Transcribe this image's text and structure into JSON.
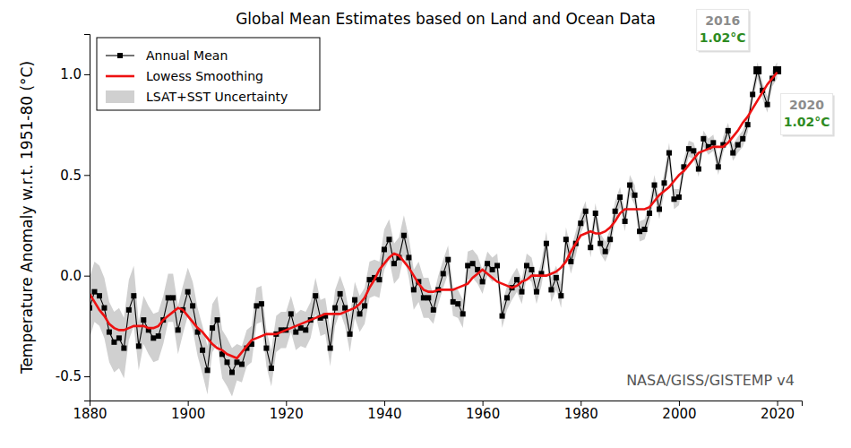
{
  "chart_data": {
    "type": "line",
    "title": "Global Mean Estimates based on Land and Ocean Data",
    "y_label": "Temperature Anomaly w.r.t. 1951-80 (°C)",
    "source": "NASA/GISS/GISTEMP v4",
    "x": [
      1880,
      1881,
      1882,
      1883,
      1884,
      1885,
      1886,
      1887,
      1888,
      1889,
      1890,
      1891,
      1892,
      1893,
      1894,
      1895,
      1896,
      1897,
      1898,
      1899,
      1900,
      1901,
      1902,
      1903,
      1904,
      1905,
      1906,
      1907,
      1908,
      1909,
      1910,
      1911,
      1912,
      1913,
      1914,
      1915,
      1916,
      1917,
      1918,
      1919,
      1920,
      1921,
      1922,
      1923,
      1924,
      1925,
      1926,
      1927,
      1928,
      1929,
      1930,
      1931,
      1932,
      1933,
      1934,
      1935,
      1936,
      1937,
      1938,
      1939,
      1940,
      1941,
      1942,
      1943,
      1944,
      1945,
      1946,
      1947,
      1948,
      1949,
      1950,
      1951,
      1952,
      1953,
      1954,
      1955,
      1956,
      1957,
      1958,
      1959,
      1960,
      1961,
      1962,
      1963,
      1964,
      1965,
      1966,
      1967,
      1968,
      1969,
      1970,
      1971,
      1972,
      1973,
      1974,
      1975,
      1976,
      1977,
      1978,
      1979,
      1980,
      1981,
      1982,
      1983,
      1984,
      1985,
      1986,
      1987,
      1988,
      1989,
      1990,
      1991,
      1992,
      1993,
      1994,
      1995,
      1996,
      1997,
      1998,
      1999,
      2000,
      2001,
      2002,
      2003,
      2004,
      2005,
      2006,
      2007,
      2008,
      2009,
      2010,
      2011,
      2012,
      2013,
      2014,
      2015,
      2016,
      2017,
      2018,
      2019,
      2020
    ],
    "series": [
      {
        "name": "Annual Mean",
        "type": "line",
        "color": "#000000",
        "marker": "square",
        "line_style": "solid",
        "values": [
          -0.16,
          -0.08,
          -0.1,
          -0.16,
          -0.28,
          -0.33,
          -0.31,
          -0.36,
          -0.17,
          -0.1,
          -0.35,
          -0.22,
          -0.27,
          -0.31,
          -0.3,
          -0.22,
          -0.11,
          -0.11,
          -0.27,
          -0.17,
          -0.08,
          -0.15,
          -0.28,
          -0.37,
          -0.47,
          -0.26,
          -0.22,
          -0.39,
          -0.43,
          -0.48,
          -0.43,
          -0.44,
          -0.36,
          -0.34,
          -0.15,
          -0.14,
          -0.36,
          -0.46,
          -0.29,
          -0.27,
          -0.27,
          -0.19,
          -0.28,
          -0.26,
          -0.27,
          -0.22,
          -0.1,
          -0.21,
          -0.2,
          -0.36,
          -0.16,
          -0.09,
          -0.16,
          -0.29,
          -0.12,
          -0.19,
          -0.15,
          -0.02,
          -0.01,
          -0.02,
          0.13,
          0.18,
          0.06,
          0.09,
          0.2,
          0.09,
          -0.07,
          -0.03,
          -0.11,
          -0.11,
          -0.17,
          -0.07,
          0.01,
          0.08,
          -0.13,
          -0.14,
          -0.19,
          0.05,
          0.06,
          0.03,
          -0.03,
          0.06,
          0.03,
          0.05,
          -0.2,
          -0.11,
          -0.06,
          -0.02,
          -0.08,
          0.05,
          0.03,
          -0.08,
          0.01,
          0.16,
          -0.07,
          -0.01,
          -0.1,
          0.18,
          0.07,
          0.16,
          0.26,
          0.32,
          0.14,
          0.31,
          0.16,
          0.12,
          0.18,
          0.32,
          0.39,
          0.27,
          0.45,
          0.4,
          0.22,
          0.23,
          0.31,
          0.45,
          0.33,
          0.46,
          0.61,
          0.38,
          0.39,
          0.54,
          0.63,
          0.62,
          0.53,
          0.68,
          0.64,
          0.66,
          0.54,
          0.65,
          0.72,
          0.61,
          0.65,
          0.68,
          0.75,
          0.9,
          1.02,
          0.92,
          0.85,
          0.98,
          1.02
        ]
      },
      {
        "name": "Lowess Smoothing",
        "type": "line",
        "color": "#ee1111",
        "line_style": "solid",
        "values": [
          -0.09,
          -0.13,
          -0.17,
          -0.2,
          -0.24,
          -0.26,
          -0.27,
          -0.27,
          -0.26,
          -0.25,
          -0.25,
          -0.25,
          -0.26,
          -0.26,
          -0.25,
          -0.22,
          -0.2,
          -0.18,
          -0.16,
          -0.17,
          -0.2,
          -0.23,
          -0.26,
          -0.28,
          -0.31,
          -0.34,
          -0.36,
          -0.37,
          -0.39,
          -0.4,
          -0.41,
          -0.38,
          -0.35,
          -0.32,
          -0.31,
          -0.3,
          -0.29,
          -0.29,
          -0.29,
          -0.28,
          -0.27,
          -0.26,
          -0.25,
          -0.24,
          -0.23,
          -0.22,
          -0.21,
          -0.2,
          -0.19,
          -0.19,
          -0.19,
          -0.19,
          -0.18,
          -0.17,
          -0.16,
          -0.14,
          -0.11,
          -0.06,
          -0.02,
          0.03,
          0.06,
          0.09,
          0.11,
          0.1,
          0.07,
          0.04,
          0.0,
          -0.04,
          -0.07,
          -0.08,
          -0.08,
          -0.07,
          -0.07,
          -0.07,
          -0.07,
          -0.06,
          -0.05,
          -0.04,
          -0.01,
          0.01,
          0.03,
          0.01,
          -0.01,
          -0.03,
          -0.04,
          -0.05,
          -0.06,
          -0.05,
          -0.03,
          -0.02,
          0.0,
          0.0,
          0.0,
          0.0,
          0.01,
          0.02,
          0.04,
          0.07,
          0.12,
          0.16,
          0.2,
          0.21,
          0.22,
          0.21,
          0.21,
          0.22,
          0.24,
          0.27,
          0.31,
          0.33,
          0.33,
          0.33,
          0.33,
          0.33,
          0.34,
          0.37,
          0.4,
          0.42,
          0.44,
          0.47,
          0.5,
          0.52,
          0.55,
          0.58,
          0.61,
          0.62,
          0.63,
          0.64,
          0.64,
          0.64,
          0.66,
          0.69,
          0.72,
          0.76,
          0.79,
          0.83,
          0.87,
          0.91,
          0.95,
          0.98,
          1.01
        ]
      },
      {
        "name": "LSAT+SST Uncertainty",
        "type": "area",
        "color": "#d0d0d0",
        "lower": [
          -0.31,
          -0.23,
          -0.25,
          -0.31,
          -0.43,
          -0.48,
          -0.46,
          -0.51,
          -0.32,
          -0.25,
          -0.47,
          -0.34,
          -0.39,
          -0.43,
          -0.42,
          -0.34,
          -0.23,
          -0.23,
          -0.39,
          -0.29,
          -0.2,
          -0.27,
          -0.4,
          -0.49,
          -0.59,
          -0.38,
          -0.34,
          -0.51,
          -0.55,
          -0.6,
          -0.52,
          -0.53,
          -0.45,
          -0.43,
          -0.24,
          -0.23,
          -0.45,
          -0.55,
          -0.38,
          -0.36,
          -0.36,
          -0.28,
          -0.37,
          -0.35,
          -0.36,
          -0.31,
          -0.19,
          -0.3,
          -0.29,
          -0.45,
          -0.25,
          -0.18,
          -0.25,
          -0.38,
          -0.21,
          -0.28,
          -0.24,
          -0.11,
          -0.1,
          -0.11,
          0.03,
          0.08,
          -0.04,
          -0.01,
          0.1,
          -0.01,
          -0.17,
          -0.13,
          -0.21,
          -0.21,
          -0.24,
          -0.14,
          -0.06,
          0.01,
          -0.2,
          -0.21,
          -0.26,
          -0.02,
          -0.01,
          -0.04,
          -0.09,
          0.0,
          -0.03,
          -0.01,
          -0.26,
          -0.17,
          -0.12,
          -0.08,
          -0.14,
          -0.01,
          -0.03,
          -0.14,
          -0.05,
          0.1,
          -0.13,
          -0.07,
          -0.16,
          0.12,
          0.01,
          0.1,
          0.21,
          0.27,
          0.09,
          0.26,
          0.11,
          0.07,
          0.13,
          0.27,
          0.34,
          0.22,
          0.4,
          0.35,
          0.17,
          0.18,
          0.26,
          0.4,
          0.28,
          0.41,
          0.56,
          0.33,
          0.35,
          0.5,
          0.59,
          0.58,
          0.49,
          0.64,
          0.6,
          0.62,
          0.5,
          0.61,
          0.68,
          0.57,
          0.61,
          0.64,
          0.71,
          0.86,
          0.98,
          0.88,
          0.81,
          0.94,
          0.98
        ],
        "upper": [
          -0.01,
          0.07,
          0.05,
          -0.01,
          -0.13,
          -0.18,
          -0.16,
          -0.21,
          -0.02,
          0.05,
          -0.23,
          -0.1,
          -0.15,
          -0.19,
          -0.18,
          -0.1,
          0.01,
          0.01,
          -0.15,
          -0.05,
          0.04,
          -0.03,
          -0.16,
          -0.25,
          -0.35,
          -0.14,
          -0.1,
          -0.27,
          -0.31,
          -0.36,
          -0.34,
          -0.35,
          -0.27,
          -0.25,
          -0.06,
          -0.05,
          -0.27,
          -0.37,
          -0.2,
          -0.18,
          -0.18,
          -0.1,
          -0.19,
          -0.17,
          -0.18,
          -0.13,
          -0.01,
          -0.12,
          -0.11,
          -0.27,
          -0.07,
          0.0,
          -0.07,
          -0.2,
          -0.03,
          -0.1,
          -0.06,
          0.07,
          0.08,
          0.07,
          0.23,
          0.28,
          0.16,
          0.19,
          0.3,
          0.19,
          0.03,
          0.07,
          -0.01,
          -0.01,
          -0.1,
          0.0,
          0.08,
          0.15,
          -0.06,
          -0.07,
          -0.12,
          0.12,
          0.13,
          0.1,
          0.03,
          0.12,
          0.09,
          0.11,
          -0.14,
          -0.05,
          0.0,
          0.04,
          -0.02,
          0.11,
          0.09,
          -0.02,
          0.07,
          0.22,
          -0.01,
          0.05,
          -0.04,
          0.24,
          0.13,
          0.22,
          0.31,
          0.37,
          0.19,
          0.36,
          0.21,
          0.17,
          0.23,
          0.37,
          0.44,
          0.32,
          0.5,
          0.45,
          0.27,
          0.28,
          0.36,
          0.5,
          0.38,
          0.51,
          0.66,
          0.43,
          0.43,
          0.58,
          0.67,
          0.66,
          0.57,
          0.72,
          0.68,
          0.7,
          0.58,
          0.69,
          0.76,
          0.65,
          0.69,
          0.72,
          0.79,
          0.94,
          1.06,
          0.96,
          0.89,
          1.02,
          1.06
        ]
      }
    ],
    "annotations": [
      {
        "x": 2016,
        "y": 1.02,
        "label": "2016",
        "value_label": "1.02°C"
      },
      {
        "x": 2020,
        "y": 1.02,
        "label": "2020",
        "value_label": "1.02°C"
      }
    ],
    "xlim": [
      1880,
      2025
    ],
    "xticks": [
      1880,
      1900,
      1920,
      1940,
      1960,
      1980,
      2000,
      2020
    ],
    "ylim": [
      -0.62,
      1.2
    ],
    "yticks": [
      -0.5,
      {
        "value": 0,
        "label": "0.0"
      },
      0.5,
      {
        "value": 1,
        "label": "1.0"
      }
    ],
    "grid": false,
    "legend": "upper left"
  }
}
